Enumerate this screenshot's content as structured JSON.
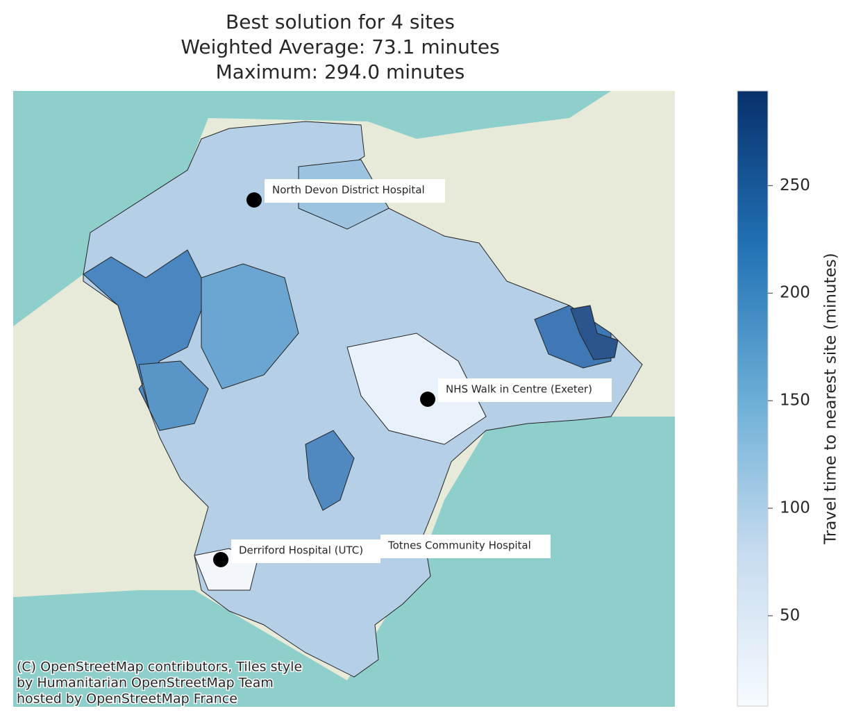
{
  "title": [
    "Best solution for 4 sites",
    "Weighted Average: 73.1 minutes",
    "Maximum: 294.0 minutes"
  ],
  "sites": [
    {
      "label": "North Devon District Hospital"
    },
    {
      "label": "NHS Walk in Centre (Exeter)"
    },
    {
      "label": "Derriford Hospital (UTC)"
    },
    {
      "label": "Totnes Community Hospital"
    }
  ],
  "attribution": [
    "(C) OpenStreetMap contributors, Tiles style",
    "by Humanitarian OpenStreetMap Team",
    "hosted by OpenStreetMap France"
  ],
  "colorbar": {
    "label": "Travel time to nearest site (minutes)",
    "lim": [
      8,
      294
    ],
    "ticks": [
      50,
      100,
      150,
      200,
      250
    ]
  }
}
